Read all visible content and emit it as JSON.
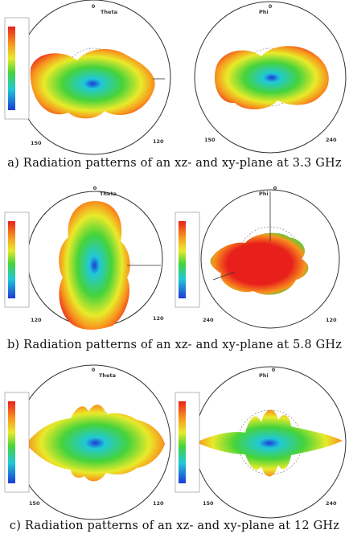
{
  "panels": [
    {
      "caption": "a) Radiation patterns of an xz- and xy-plane at 3.3 GHz",
      "plots": [
        {
          "top_label": "Theta",
          "top_zero": "0",
          "left_angle": "150",
          "right_angle": "120"
        },
        {
          "top_label": "Phi",
          "top_zero": "0",
          "left_angle": "150",
          "right_angle": "240"
        }
      ]
    },
    {
      "caption": "b) Radiation patterns of an xz- and xy-plane at 5.8 GHz",
      "plots": [
        {
          "top_label": "Theta",
          "top_zero": "0",
          "left_angle": "120",
          "right_angle": "120"
        },
        {
          "top_label": "Phi",
          "top_zero": "0",
          "left_angle": "240",
          "right_angle": "120"
        }
      ]
    },
    {
      "caption": "c) Radiation patterns of an xz- and xy-plane at 12 GHz",
      "plots": [
        {
          "top_label": "Theta",
          "top_zero": "0",
          "left_angle": "150",
          "right_angle": "120"
        },
        {
          "top_label": "Phi",
          "top_zero": "0",
          "left_angle": "150",
          "right_angle": "240"
        }
      ]
    }
  ],
  "colors": {
    "red": "#e8201c",
    "orange": "#f7931e",
    "yellow": "#e9ea2a",
    "green": "#46d33a",
    "cyan": "#20c8d8",
    "blue": "#1c3bd6"
  }
}
